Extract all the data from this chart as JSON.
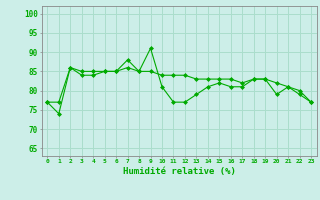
{
  "title": "",
  "xlabel": "Humidité relative (%)",
  "ylabel": "",
  "bg_color": "#cceee8",
  "grid_color": "#aaddcc",
  "line_color": "#00aa00",
  "marker_color": "#00aa00",
  "xlim": [
    -0.5,
    23.5
  ],
  "ylim": [
    63,
    102
  ],
  "yticks": [
    65,
    70,
    75,
    80,
    85,
    90,
    95,
    100
  ],
  "xticks": [
    0,
    1,
    2,
    3,
    4,
    5,
    6,
    7,
    8,
    9,
    10,
    11,
    12,
    13,
    14,
    15,
    16,
    17,
    18,
    19,
    20,
    21,
    22,
    23
  ],
  "series1": [
    77,
    74,
    86,
    84,
    84,
    85,
    85,
    88,
    85,
    91,
    81,
    77,
    77,
    79,
    81,
    82,
    81,
    81,
    83,
    83,
    79,
    81,
    80,
    77
  ],
  "series2": [
    77,
    77,
    86,
    85,
    85,
    85,
    85,
    86,
    85,
    85,
    84,
    84,
    84,
    83,
    83,
    83,
    83,
    82,
    83,
    83,
    82,
    81,
    79,
    77
  ]
}
